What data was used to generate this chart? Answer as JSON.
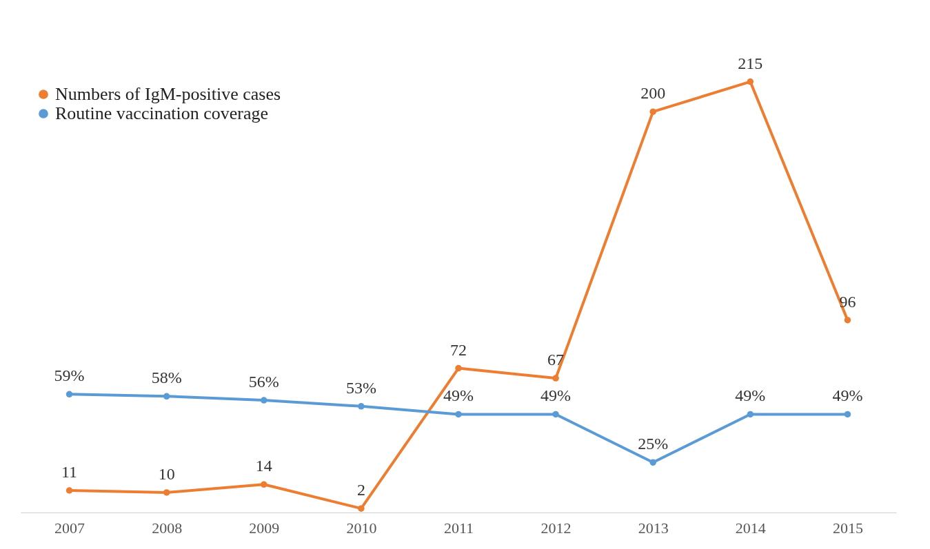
{
  "chart_data": {
    "type": "line",
    "categories": [
      "2007",
      "2008",
      "2009",
      "2010",
      "2011",
      "2012",
      "2013",
      "2014",
      "2015"
    ],
    "series": [
      {
        "name": "Numbers of IgM-positive cases",
        "color": "#ed7d31",
        "values": [
          11,
          10,
          14,
          2,
          72,
          67,
          200,
          215,
          96
        ]
      },
      {
        "name": "Routine vaccination coverage",
        "color": "#5b9bd5",
        "values": [
          59,
          58,
          56,
          53,
          49,
          49,
          25,
          49,
          49
        ],
        "value_labels": [
          "59%",
          "58%",
          "56%",
          "53%",
          "49%",
          "49%",
          "25%",
          "49%",
          "49%"
        ]
      }
    ],
    "data_labels": true,
    "legend": "top left",
    "marker": "circle",
    "tick_labels": "x",
    "grid": false,
    "line_style": "solid"
  }
}
